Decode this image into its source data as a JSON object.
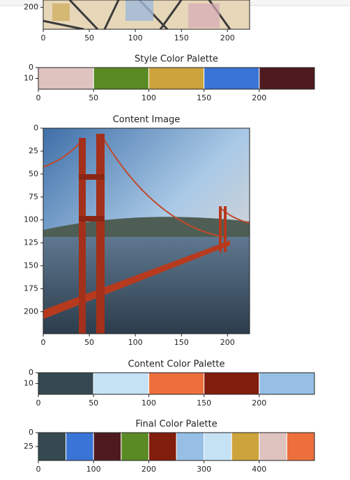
{
  "figures": [
    {
      "kind": "image",
      "xlim": [
        0,
        224
      ],
      "ylim": [
        0,
        224
      ],
      "xticks": [
        0,
        50,
        100,
        150,
        200
      ],
      "yticks": [
        200
      ]
    },
    {
      "kind": "palette",
      "title": "Style Color Palette",
      "xlim": [
        0,
        250
      ],
      "ylim": [
        0,
        20
      ],
      "xticks": [
        0,
        50,
        100,
        150,
        200
      ],
      "yticks": [
        0,
        10
      ],
      "colors": [
        "#dfc3bf",
        "#5a8a24",
        "#cda33c",
        "#3a74d6",
        "#4f1a1f"
      ]
    },
    {
      "kind": "image",
      "title": "Content Image",
      "xlim": [
        0,
        224
      ],
      "ylim": [
        0,
        224
      ],
      "xticks": [
        0,
        50,
        100,
        150,
        200
      ],
      "yticks": [
        0,
        25,
        50,
        75,
        100,
        125,
        150,
        175,
        200
      ]
    },
    {
      "kind": "palette",
      "title": "Content Color Palette",
      "xlim": [
        0,
        250
      ],
      "ylim": [
        0,
        20
      ],
      "xticks": [
        0,
        50,
        100,
        150,
        200
      ],
      "yticks": [
        0,
        10
      ],
      "colors": [
        "#354a50",
        "#c5e2f5",
        "#ed703c",
        "#821e0c",
        "#97bfe5"
      ]
    },
    {
      "kind": "palette",
      "title": "Final Color Palette",
      "xlim": [
        0,
        500
      ],
      "ylim": [
        0,
        50
      ],
      "xticks": [
        0,
        100,
        200,
        300,
        400
      ],
      "yticks": [
        0,
        25
      ],
      "colors": [
        "#354a50",
        "#3a74d6",
        "#4f1a1f",
        "#5a8a24",
        "#821e0c",
        "#97bfe5",
        "#c5e2f5",
        "#cda33c",
        "#dfc3bf",
        "#ed703c"
      ]
    }
  ]
}
